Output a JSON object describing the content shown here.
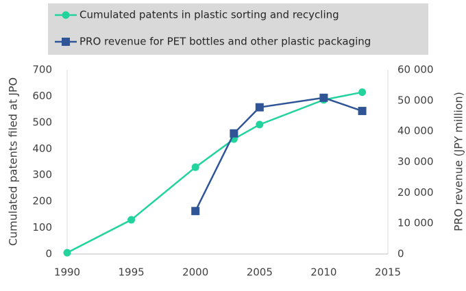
{
  "chart_data": {
    "type": "line",
    "x": [
      1990,
      1995,
      2000,
      2003,
      2005,
      2010,
      2013
    ],
    "series": [
      {
        "name": "Cumulated patents in plastic sorting and recycling",
        "color": "#22d39e",
        "marker": "circle",
        "values": [
          5,
          130,
          330,
          437,
          492,
          586,
          615
        ]
      },
      {
        "name": "PRO revenue for PET bottles and other plastic packaging",
        "color": "#2f5597",
        "marker": "square",
        "axis": "y2",
        "values": [
          null,
          null,
          14000,
          39300,
          47800,
          50900,
          46600
        ]
      }
    ],
    "xlim": [
      1990,
      2015
    ],
    "xticks": [
      1990,
      1995,
      2000,
      2005,
      2010,
      2015
    ],
    "ylim": [
      0,
      700
    ],
    "yticks": [
      0,
      100,
      200,
      300,
      400,
      500,
      600,
      700
    ],
    "y2lim": [
      0,
      60000
    ],
    "y2ticks": [
      0,
      {
        "value": 10000,
        "label": "10 000"
      },
      {
        "value": 20000,
        "label": "20 000"
      },
      {
        "value": 30000,
        "label": "30 000"
      },
      {
        "value": 40000,
        "label": "40 000"
      },
      {
        "value": 50000,
        "label": "50 000"
      },
      {
        "value": 60000,
        "label": "60 000"
      }
    ],
    "ylabel": "Cumulated patents filed at JPO",
    "y2label": "PRO revenue (JPY million)",
    "grid": false
  }
}
